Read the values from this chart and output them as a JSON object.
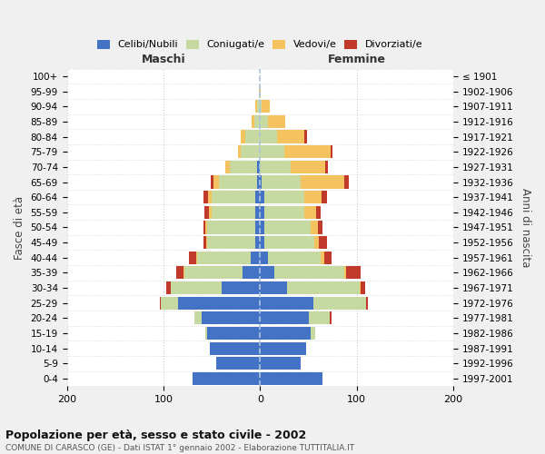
{
  "age_groups": [
    "0-4",
    "5-9",
    "10-14",
    "15-19",
    "20-24",
    "25-29",
    "30-34",
    "35-39",
    "40-44",
    "45-49",
    "50-54",
    "55-59",
    "60-64",
    "65-69",
    "70-74",
    "75-79",
    "80-84",
    "85-89",
    "90-94",
    "95-99",
    "100+"
  ],
  "birth_years": [
    "1997-2001",
    "1992-1996",
    "1987-1991",
    "1982-1986",
    "1977-1981",
    "1972-1976",
    "1967-1971",
    "1962-1966",
    "1957-1961",
    "1952-1956",
    "1947-1951",
    "1942-1946",
    "1937-1941",
    "1932-1936",
    "1927-1931",
    "1922-1926",
    "1917-1921",
    "1912-1916",
    "1907-1911",
    "1902-1906",
    "≤ 1901"
  ],
  "male": {
    "celibi": [
      70,
      45,
      52,
      55,
      60,
      85,
      40,
      18,
      10,
      5,
      5,
      5,
      5,
      3,
      3,
      0,
      0,
      0,
      0,
      0,
      0
    ],
    "coniugati": [
      0,
      0,
      0,
      2,
      8,
      18,
      52,
      60,
      55,
      50,
      50,
      45,
      45,
      40,
      28,
      20,
      15,
      6,
      3,
      1,
      0
    ],
    "vedovi": [
      0,
      0,
      0,
      0,
      0,
      0,
      0,
      1,
      1,
      1,
      2,
      3,
      4,
      5,
      5,
      3,
      5,
      3,
      2,
      0,
      0
    ],
    "divorziati": [
      0,
      0,
      0,
      0,
      0,
      1,
      5,
      8,
      8,
      3,
      2,
      5,
      5,
      3,
      0,
      0,
      0,
      0,
      0,
      0,
      0
    ]
  },
  "female": {
    "nubili": [
      65,
      42,
      48,
      52,
      50,
      55,
      28,
      15,
      8,
      4,
      4,
      4,
      4,
      2,
      0,
      0,
      0,
      0,
      0,
      0,
      0
    ],
    "coniugate": [
      0,
      0,
      0,
      5,
      22,
      55,
      75,
      72,
      55,
      52,
      48,
      42,
      42,
      40,
      32,
      25,
      18,
      8,
      2,
      0,
      0
    ],
    "vedove": [
      0,
      0,
      0,
      0,
      0,
      0,
      1,
      2,
      3,
      5,
      8,
      12,
      18,
      45,
      35,
      48,
      28,
      18,
      8,
      1,
      0
    ],
    "divorziate": [
      0,
      0,
      0,
      0,
      2,
      2,
      5,
      15,
      8,
      8,
      5,
      5,
      5,
      5,
      3,
      2,
      3,
      0,
      0,
      0,
      0
    ]
  },
  "color_celibi": "#4472C4",
  "color_coniugati": "#C5D9A0",
  "color_vedovi": "#F5C260",
  "color_divorziati": "#C0392B",
  "xlim": 200,
  "title": "Popolazione per età, sesso e stato civile - 2002",
  "subtitle": "COMUNE DI CARASCO (GE) - Dati ISTAT 1° gennaio 2002 - Elaborazione TUTTITALIA.IT",
  "ylabel_left": "Fasce di età",
  "ylabel_right": "Anni di nascita",
  "xlabel_left": "Maschi",
  "xlabel_right": "Femmine",
  "bg_color": "#f0f0f0",
  "plot_bg": "#ffffff"
}
